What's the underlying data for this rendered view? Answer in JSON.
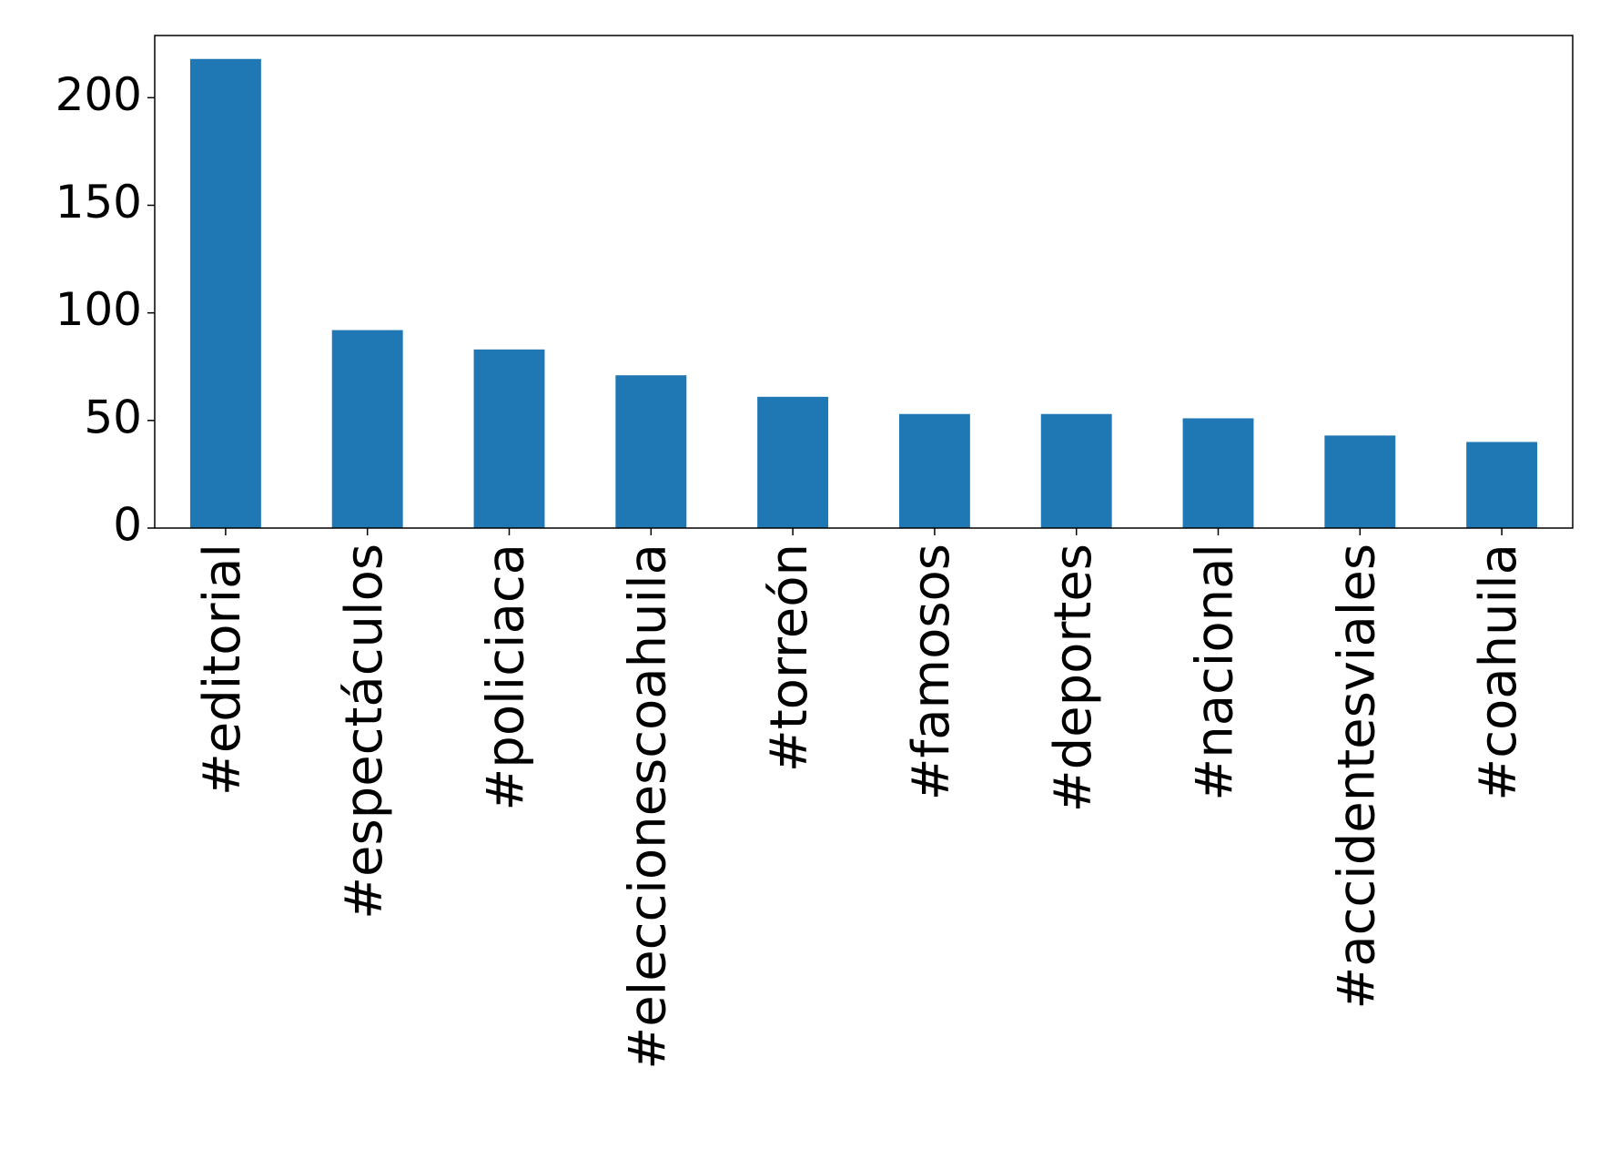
{
  "chart_data": {
    "type": "bar",
    "categories": [
      "#editorial",
      "#espectáculos",
      "#policiaca",
      "#eleccionescoahuila",
      "#torreón",
      "#famosos",
      "#deportes",
      "#nacional",
      "#accidentesviales",
      "#coahuila"
    ],
    "values": [
      218,
      92,
      83,
      71,
      61,
      53,
      53,
      51,
      43,
      40
    ],
    "color": "#1f77b4",
    "ylim": [
      0,
      228.9
    ],
    "yticks": [
      0,
      50,
      100,
      150,
      200
    ],
    "grid": false
  }
}
